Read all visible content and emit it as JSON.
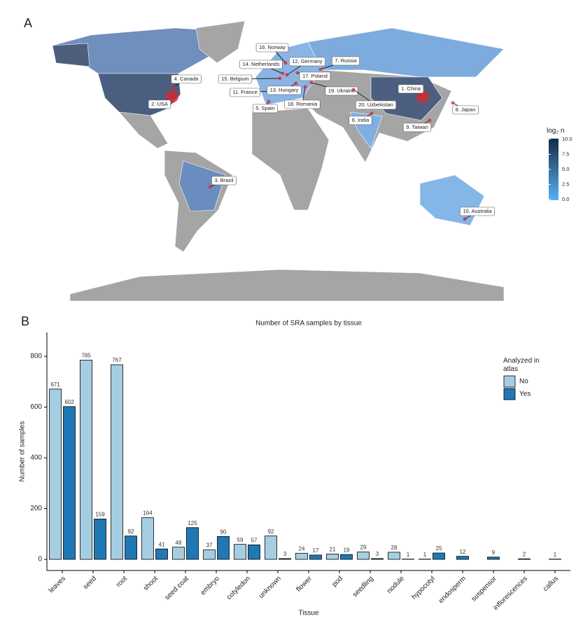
{
  "panel_labels": [
    "A",
    "B"
  ],
  "chart_data": [
    {
      "type": "map",
      "countries": [
        "1. China",
        "2. USA",
        "3. Brazil",
        "4. Canada",
        "5. Spain",
        "6. India",
        "7. Russia",
        "8. Japan",
        "9. Taiwan",
        "10. Australia",
        "11. France",
        "12. Germany",
        "13. Hungary",
        "14. Netherlands",
        "15. Belgium",
        "16. Norway",
        "17. Poland",
        "18. Romania",
        "19. Ukraine",
        "20. Uzbekistan"
      ],
      "legend_title": "log₂ n",
      "legend_range": [
        0,
        10
      ],
      "legend_colors": [
        "#56b1f7",
        "#132b43"
      ],
      "legend_ticks": [
        {
          "value": 0,
          "label": "0.0"
        },
        2.5,
        {
          "value": 5,
          "label": "5.0"
        },
        7.5,
        {
          "value": 10,
          "label": "10.0"
        }
      ]
    },
    {
      "type": "bar",
      "title": "Number of SRA samples by tissue",
      "x_label": "Tissue",
      "y_label": "Number of samples",
      "legend_title": "Analyzed in atlas",
      "categories": [
        "leaves",
        "seed",
        "root",
        "shoot",
        "seed coat",
        "embryo",
        "cotyledon",
        "unknown",
        "flower",
        "pod",
        "seedling",
        "nodule",
        "hypocotyl",
        "endosperm",
        "suspensor",
        "inflorescences",
        "callus"
      ],
      "series": [
        {
          "name": "No",
          "color": "#a6cee3",
          "values": [
            671,
            785,
            767,
            164,
            48,
            37,
            59,
            92,
            24,
            21,
            29,
            28,
            1,
            null,
            null,
            null,
            null
          ]
        },
        {
          "name": "Yes",
          "color": "#1f78b4",
          "values": [
            602,
            159,
            92,
            41,
            125,
            90,
            57,
            3,
            17,
            19,
            3,
            1,
            25,
            12,
            9,
            2,
            1
          ]
        }
      ],
      "ylim": [
        -44,
        894
      ],
      "yticks": [
        0,
        200,
        400,
        600,
        800
      ]
    }
  ]
}
